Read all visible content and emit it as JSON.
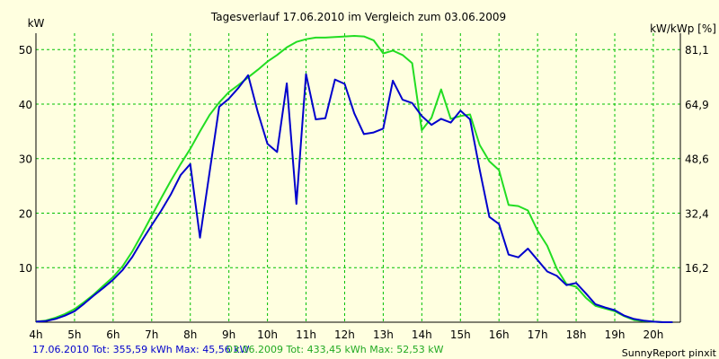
{
  "chart_data": {
    "type": "line",
    "title": "Tagesverlauf 17.06.2010 im Vergleich zum 03.06.2009",
    "ylabel_left": "kW",
    "ylabel_right": "kW/kWp [%]",
    "x_ticks": [
      "4h",
      "5h",
      "6h",
      "7h",
      "8h",
      "9h",
      "10h",
      "11h",
      "12h",
      "13h",
      "14h",
      "15h",
      "16h",
      "17h",
      "18h",
      "19h",
      "20h"
    ],
    "xlim": [
      4,
      20.7
    ],
    "ylim": [
      0,
      53
    ],
    "y_ticks_left": [
      "10",
      "20",
      "30",
      "40",
      "50"
    ],
    "y_ticks_right": [
      "16,2",
      "32,4",
      "48,6",
      "64,9",
      "81,1"
    ],
    "grid": true,
    "colors": {
      "background": "#ffffe0",
      "grid": "#00c000",
      "axis": "#000000"
    },
    "series": [
      {
        "name": "17.06.2010",
        "color": "#0000cc",
        "x": [
          4.0,
          4.25,
          4.5,
          4.75,
          5.0,
          5.25,
          5.5,
          5.75,
          6.0,
          6.25,
          6.5,
          6.75,
          7.0,
          7.25,
          7.5,
          7.75,
          8.0,
          8.25,
          8.5,
          8.75,
          9.0,
          9.25,
          9.5,
          9.75,
          10.0,
          10.25,
          10.5,
          10.75,
          11.0,
          11.25,
          11.5,
          11.75,
          12.0,
          12.25,
          12.5,
          12.75,
          13.0,
          13.25,
          13.5,
          13.75,
          14.0,
          14.25,
          14.5,
          14.75,
          15.0,
          15.25,
          15.5,
          15.75,
          16.0,
          16.25,
          16.5,
          16.75,
          17.0,
          17.25,
          17.5,
          17.75,
          18.0,
          18.25,
          18.5,
          18.75,
          19.0,
          19.25,
          19.5,
          19.75,
          20.0,
          20.25,
          20.5
        ],
        "y": [
          0.1,
          0.2,
          0.6,
          1.2,
          2.0,
          3.4,
          4.9,
          6.3,
          7.8,
          9.6,
          12.0,
          15.0,
          17.8,
          20.5,
          23.5,
          27.0,
          29.0,
          15.5,
          27.5,
          39.5,
          41.0,
          43.0,
          45.3,
          38.5,
          32.7,
          31.2,
          43.8,
          21.7,
          45.5,
          37.2,
          37.4,
          44.5,
          43.7,
          38.3,
          34.5,
          34.8,
          35.5,
          44.3,
          40.8,
          40.2,
          37.8,
          36.2,
          37.3,
          36.6,
          38.8,
          37.2,
          28.0,
          19.3,
          18.0,
          12.4,
          11.9,
          13.5,
          11.4,
          9.3,
          8.5,
          6.8,
          7.2,
          5.3,
          3.3,
          2.7,
          2.2,
          1.2,
          0.6,
          0.3,
          0.1,
          0.0,
          0.0
        ],
        "total": "355,59 kWh",
        "max": "45,56 kW"
      },
      {
        "name": "03.06.2009",
        "color": "#22dd22",
        "x": [
          4.0,
          4.25,
          4.5,
          4.75,
          5.0,
          5.25,
          5.5,
          5.75,
          6.0,
          6.25,
          6.5,
          6.75,
          7.0,
          7.25,
          7.5,
          7.75,
          8.0,
          8.25,
          8.5,
          8.75,
          9.0,
          9.25,
          9.5,
          9.75,
          10.0,
          10.25,
          10.5,
          10.75,
          11.0,
          11.25,
          11.5,
          11.75,
          12.0,
          12.25,
          12.5,
          12.75,
          13.0,
          13.25,
          13.5,
          13.75,
          14.0,
          14.25,
          14.5,
          14.75,
          15.0,
          15.25,
          15.5,
          15.75,
          16.0,
          16.25,
          16.5,
          16.75,
          17.0,
          17.25,
          17.5,
          17.75,
          18.0,
          18.25,
          18.5,
          18.75,
          19.0,
          19.25,
          19.5,
          19.75,
          20.0,
          20.25,
          20.5
        ],
        "y": [
          0.1,
          0.3,
          0.8,
          1.5,
          2.4,
          3.7,
          5.1,
          6.7,
          8.3,
          10.3,
          13.0,
          16.2,
          19.5,
          22.8,
          26.0,
          29.0,
          31.8,
          35.0,
          38.0,
          40.3,
          42.2,
          43.5,
          44.9,
          46.3,
          47.8,
          49.0,
          50.4,
          51.4,
          51.9,
          52.2,
          52.2,
          52.3,
          52.4,
          52.5,
          52.4,
          51.7,
          49.3,
          49.8,
          49.0,
          47.5,
          35.2,
          37.5,
          42.7,
          37.3,
          37.8,
          38.1,
          32.5,
          29.5,
          27.9,
          21.5,
          21.3,
          20.5,
          16.8,
          14.0,
          9.8,
          7.0,
          6.5,
          4.5,
          3.0,
          2.5,
          2.0,
          1.1,
          0.4,
          0.2,
          0.1,
          0.0,
          0.0
        ],
        "total": "433,45 kWh",
        "max": "52,53 kW"
      }
    ]
  },
  "footer": {
    "series1_text": "17.06.2010 Tot: 355,59 kWh Max: 45,56 kW",
    "series2_text": "03.06.2009 Tot: 433,45 kWh Max: 52,53 kW",
    "credit": "SunnyReport pinxit"
  }
}
